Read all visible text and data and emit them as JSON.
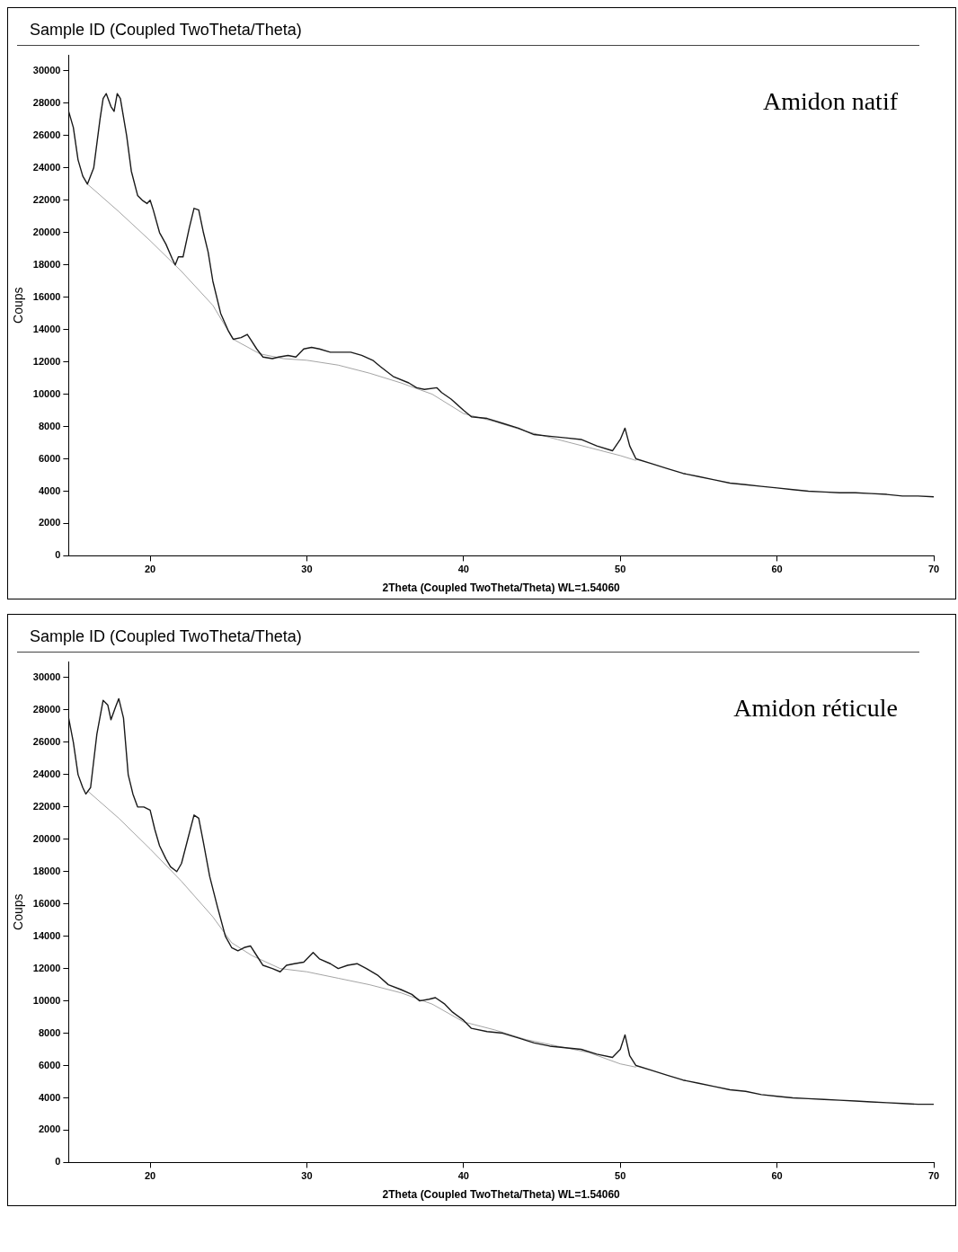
{
  "chart_data": [
    {
      "type": "line",
      "title": "Sample ID (Coupled TwoTheta/Theta)",
      "xlabel": "2Theta (Coupled TwoTheta/Theta) WL=1.54060",
      "ylabel": "Coups",
      "annotations": [
        "Amidon natif"
      ],
      "xlim": [
        14.8,
        70
      ],
      "ylim": [
        0,
        31000
      ],
      "xticks": [
        20,
        30,
        40,
        50,
        60,
        70
      ],
      "yticks": [
        0,
        2000,
        4000,
        6000,
        8000,
        10000,
        12000,
        14000,
        16000,
        18000,
        20000,
        22000,
        24000,
        26000,
        28000,
        30000
      ],
      "grid": false,
      "legend": false,
      "marker": "none",
      "series": [
        {
          "color": "#1a1a1a",
          "x": [
            14.8,
            15.1,
            15.4,
            15.7,
            16.0,
            16.4,
            16.8,
            17.0,
            17.2,
            17.5,
            17.7,
            17.9,
            18.1,
            18.5,
            18.8,
            19.2,
            19.5,
            19.8,
            20.0,
            20.2,
            20.6,
            21.0,
            21.4,
            21.6,
            21.8,
            22.1,
            22.5,
            22.8,
            23.1,
            23.4,
            23.7,
            24.0,
            24.5,
            25.0,
            25.3,
            25.8,
            26.2,
            26.4,
            26.8,
            27.2,
            27.8,
            28.2,
            28.8,
            29.3,
            29.8,
            30.3,
            30.8,
            31.5,
            32.0,
            32.8,
            33.5,
            34.2,
            34.7,
            35.5,
            36.5,
            37.0,
            37.5,
            38.3,
            38.6,
            39.2,
            40.0,
            40.5,
            41.5,
            42.5,
            43.5,
            44.5,
            45.5,
            46.5,
            47.5,
            48.5,
            49.5,
            50.0,
            50.3,
            50.6,
            51.0,
            52.0,
            53.0,
            54.0,
            55.0,
            56.0,
            57.0,
            58.0,
            59.0,
            60.0,
            61.0,
            62.0,
            63.0,
            64.0,
            65.0,
            66.0,
            67.0,
            68.0,
            69.0,
            70.0
          ],
          "values": [
            27500,
            26500,
            24500,
            23500,
            23000,
            24000,
            27000,
            28300,
            28600,
            27800,
            27500,
            28600,
            28300,
            26000,
            23800,
            22300,
            22000,
            21800,
            22000,
            21400,
            20000,
            19300,
            18400,
            18000,
            18500,
            18500,
            20300,
            21500,
            21400,
            20000,
            18800,
            17000,
            15000,
            13900,
            13400,
            13500,
            13700,
            13400,
            12800,
            12300,
            12200,
            12300,
            12400,
            12300,
            12800,
            12900,
            12800,
            12600,
            12600,
            12600,
            12400,
            12100,
            11700,
            11100,
            10700,
            10400,
            10300,
            10400,
            10100,
            9700,
            9000,
            8600,
            8500,
            8200,
            7900,
            7500,
            7400,
            7300,
            7200,
            6800,
            6500,
            7200,
            7900,
            6800,
            6000,
            5700,
            5400,
            5100,
            4900,
            4700,
            4500,
            4400,
            4300,
            4200,
            4100,
            4000,
            3950,
            3900,
            3900,
            3850,
            3800,
            3700,
            3700,
            3650
          ]
        },
        {
          "color": "#9a9a9a",
          "x": [
            16.0,
            18,
            20,
            22,
            24,
            25.3,
            27,
            28.5,
            30,
            32,
            34,
            36,
            38,
            40,
            42,
            44,
            46,
            48,
            50,
            51
          ],
          "values": [
            23000,
            21300,
            19500,
            17600,
            15500,
            13400,
            12500,
            12200,
            12100,
            11800,
            11300,
            10700,
            10000,
            8800,
            8300,
            7700,
            7200,
            6700,
            6200,
            5900
          ]
        }
      ]
    },
    {
      "type": "line",
      "title": "Sample ID (Coupled TwoTheta/Theta)",
      "xlabel": "2Theta (Coupled TwoTheta/Theta) WL=1.54060",
      "ylabel": "Coups",
      "annotations": [
        "Amidon réticule"
      ],
      "xlim": [
        14.8,
        70
      ],
      "ylim": [
        0,
        31000
      ],
      "xticks": [
        20,
        30,
        40,
        50,
        60,
        70
      ],
      "yticks": [
        0,
        2000,
        4000,
        6000,
        8000,
        10000,
        12000,
        14000,
        16000,
        18000,
        20000,
        22000,
        24000,
        26000,
        28000,
        30000
      ],
      "grid": false,
      "legend": false,
      "marker": "none",
      "series": [
        {
          "color": "#1a1a1a",
          "x": [
            14.8,
            15.1,
            15.4,
            15.7,
            15.9,
            16.2,
            16.6,
            17.0,
            17.3,
            17.5,
            17.8,
            18.0,
            18.3,
            18.6,
            18.9,
            19.2,
            19.6,
            20.0,
            20.3,
            20.6,
            21.0,
            21.3,
            21.7,
            22.0,
            22.4,
            22.8,
            23.1,
            23.4,
            23.8,
            24.3,
            24.8,
            25.2,
            25.6,
            26.0,
            26.4,
            26.8,
            27.2,
            27.8,
            28.3,
            28.7,
            29.2,
            29.8,
            30.4,
            30.8,
            31.5,
            32.0,
            32.6,
            33.2,
            33.8,
            34.5,
            35.2,
            36.0,
            36.7,
            37.2,
            37.8,
            38.2,
            38.8,
            39.3,
            40.0,
            40.5,
            41.5,
            42.5,
            43.5,
            44.5,
            45.5,
            46.5,
            47.5,
            48.5,
            49.5,
            50.0,
            50.3,
            50.6,
            51.0,
            52.0,
            53.0,
            54.0,
            55.0,
            56.0,
            57.0,
            58.0,
            59.0,
            60.0,
            61.0,
            62.0,
            63.0,
            64.0,
            65.0,
            66.0,
            67.0,
            68.0,
            69.0,
            70.0
          ],
          "values": [
            27500,
            26000,
            24000,
            23200,
            22800,
            23200,
            26500,
            28600,
            28300,
            27400,
            28200,
            28700,
            27500,
            24000,
            22800,
            22000,
            22000,
            21800,
            20600,
            19600,
            18800,
            18300,
            18000,
            18500,
            20000,
            21500,
            21300,
            19800,
            17700,
            15800,
            14000,
            13300,
            13100,
            13300,
            13400,
            12800,
            12200,
            12000,
            11800,
            12200,
            12300,
            12400,
            13000,
            12600,
            12300,
            12000,
            12200,
            12300,
            12000,
            11600,
            11000,
            10700,
            10400,
            10000,
            10100,
            10200,
            9800,
            9300,
            8800,
            8300,
            8100,
            8000,
            7700,
            7400,
            7200,
            7100,
            7000,
            6700,
            6500,
            7000,
            7900,
            6600,
            6000,
            5700,
            5400,
            5100,
            4900,
            4700,
            4500,
            4400,
            4200,
            4100,
            4000,
            3950,
            3900,
            3850,
            3800,
            3750,
            3700,
            3650,
            3600,
            3600
          ]
        },
        {
          "color": "#9a9a9a",
          "x": [
            16.0,
            18,
            20,
            22,
            24,
            25.2,
            26.5,
            28.3,
            30,
            32,
            34,
            36,
            38,
            40,
            42,
            44,
            46,
            48,
            50,
            51
          ],
          "values": [
            23000,
            21300,
            19400,
            17400,
            15200,
            13600,
            12800,
            12000,
            11800,
            11400,
            11000,
            10500,
            9800,
            8700,
            8200,
            7600,
            7200,
            6800,
            6100,
            5900
          ]
        }
      ]
    }
  ]
}
